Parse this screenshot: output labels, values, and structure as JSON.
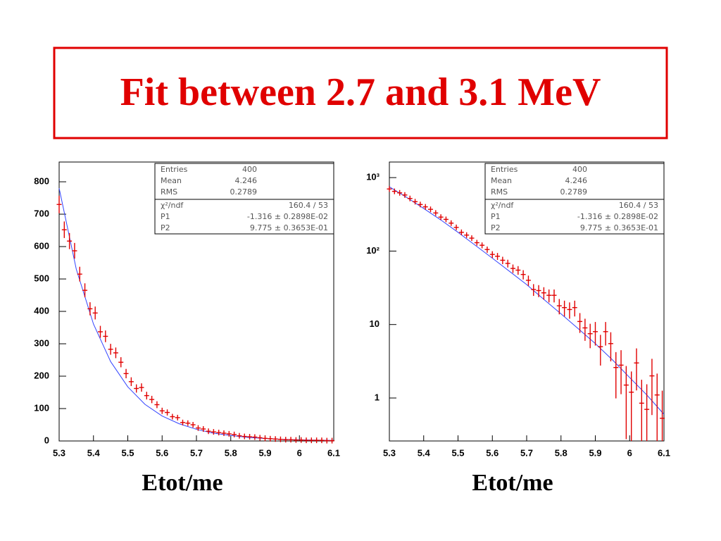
{
  "title": "Fit between 2.7 and 3.1 MeV",
  "chart_data": [
    {
      "type": "errorbar",
      "xlabel": "Etot/me",
      "x": [
        5.3,
        5.315,
        5.33,
        5.345,
        5.36,
        5.375,
        5.39,
        5.405,
        5.42,
        5.435,
        5.45,
        5.465,
        5.48,
        5.495,
        5.51,
        5.525,
        5.54,
        5.555,
        5.57,
        5.585,
        5.6,
        5.615,
        5.63,
        5.645,
        5.66,
        5.675,
        5.69,
        5.705,
        5.72,
        5.735,
        5.75,
        5.765,
        5.78,
        5.795,
        5.81,
        5.825,
        5.84,
        5.855,
        5.87,
        5.885,
        5.9,
        5.915,
        5.93,
        5.945,
        5.96,
        5.975,
        5.99,
        6.005,
        6.02,
        6.035,
        6.05,
        6.065,
        6.08,
        6.095
      ],
      "series": [
        {
          "color": "#e00000",
          "values": [
            730,
            652,
            617,
            587,
            515,
            465,
            408,
            395,
            337,
            323,
            283,
            272,
            243,
            208,
            183,
            162,
            165,
            140,
            128,
            112,
            93,
            88,
            75,
            72,
            57,
            55,
            50,
            40,
            37,
            30,
            28,
            26,
            24,
            22,
            20,
            16,
            14,
            13,
            12,
            10,
            8,
            7,
            6,
            5,
            4,
            4,
            3,
            3,
            2,
            2,
            2,
            2,
            1,
            1
          ]
        }
      ],
      "fit": {
        "color": "#3344ff",
        "x": [
          5.3,
          5.35,
          5.4,
          5.45,
          5.5,
          5.55,
          5.6,
          5.65,
          5.7,
          5.75,
          5.8,
          5.85,
          5.9,
          5.95,
          6.0,
          6.05,
          6.1
        ],
        "values": [
          780,
          530,
          361,
          245,
          167,
          113,
          77,
          53,
          36,
          24,
          17,
          11,
          7.7,
          5.2,
          3.6,
          2.4,
          1.7
        ]
      },
      "xlim": [
        5.3,
        6.1
      ],
      "ylim": [
        0,
        861
      ],
      "xticks": [
        5.3,
        5.4,
        5.5,
        5.6,
        5.7,
        5.8,
        5.9,
        6,
        6.1
      ],
      "yticks": [
        0,
        100,
        200,
        300,
        400,
        500,
        600,
        700,
        800
      ],
      "log_scale": false,
      "stats": [
        {
          "label": "Entries",
          "value": "400"
        },
        {
          "label": "Mean",
          "value": "4.246"
        },
        {
          "label": "RMS",
          "value": "0.2789"
        }
      ],
      "fit_stats": [
        {
          "label": "χ²/ndf",
          "value": "160.4  /  53"
        },
        {
          "label": "P1",
          "value": "-1.316 ±  0.2898E-02"
        },
        {
          "label": "P2",
          "value": "9.775 ±  0.3653E-01"
        }
      ]
    },
    {
      "type": "errorbar",
      "xlabel": "Etot/me",
      "x": [
        5.3,
        5.315,
        5.33,
        5.345,
        5.36,
        5.375,
        5.39,
        5.405,
        5.42,
        5.435,
        5.45,
        5.465,
        5.48,
        5.495,
        5.51,
        5.525,
        5.54,
        5.555,
        5.57,
        5.585,
        5.6,
        5.615,
        5.63,
        5.645,
        5.66,
        5.675,
        5.69,
        5.705,
        5.72,
        5.735,
        5.75,
        5.765,
        5.78,
        5.795,
        5.81,
        5.825,
        5.84,
        5.855,
        5.87,
        5.885,
        5.9,
        5.915,
        5.93,
        5.945,
        5.96,
        5.975,
        5.99,
        6.005,
        6.02,
        6.035,
        6.05,
        6.065,
        6.08,
        6.095
      ],
      "series": [
        {
          "color": "#e00000",
          "values": [
            700,
            650,
            620,
            580,
            520,
            470,
            430,
            400,
            370,
            330,
            290,
            270,
            240,
            210,
            180,
            165,
            150,
            130,
            120,
            105,
            90,
            85,
            75,
            68,
            58,
            55,
            48,
            40,
            30,
            29,
            27,
            25,
            25,
            18,
            17,
            16,
            17,
            11,
            9,
            7.5,
            8,
            5,
            8,
            5.5,
            2.6,
            2.8,
            1.5,
            1.2,
            3,
            0.85,
            0.7,
            2,
            1.1,
            0.53
          ]
        }
      ],
      "fit": {
        "color": "#3344ff",
        "x": [
          5.3,
          5.35,
          5.4,
          5.45,
          5.5,
          5.55,
          5.6,
          5.65,
          5.7,
          5.75,
          5.8,
          5.85,
          5.9,
          5.95,
          6.0,
          6.05,
          6.1
        ],
        "values": [
          750,
          540,
          380,
          265,
          180,
          120,
          80,
          53,
          35,
          22,
          14,
          8.8,
          5.5,
          3.3,
          1.9,
          1.1,
          0.6
        ]
      },
      "xlim": [
        5.3,
        6.1
      ],
      "ylim": [
        0.26,
        1630
      ],
      "xticks": [
        5.3,
        5.4,
        5.5,
        5.6,
        5.7,
        5.8,
        5.9,
        6,
        6.1
      ],
      "yticks": [
        1,
        10,
        {
          "value": 100,
          "label": "10²"
        },
        {
          "value": 1000,
          "label": "10³"
        }
      ],
      "log_scale": true,
      "stats": [
        {
          "label": "Entries",
          "value": "400"
        },
        {
          "label": "Mean",
          "value": "4.246"
        },
        {
          "label": "RMS",
          "value": "0.2789"
        }
      ],
      "fit_stats": [
        {
          "label": "χ²/ndf",
          "value": "160.4  /  53"
        },
        {
          "label": "P1",
          "value": "-1.316 ±  0.2898E-02"
        },
        {
          "label": "P2",
          "value": "9.775 ±  0.3653E-01"
        }
      ]
    }
  ]
}
